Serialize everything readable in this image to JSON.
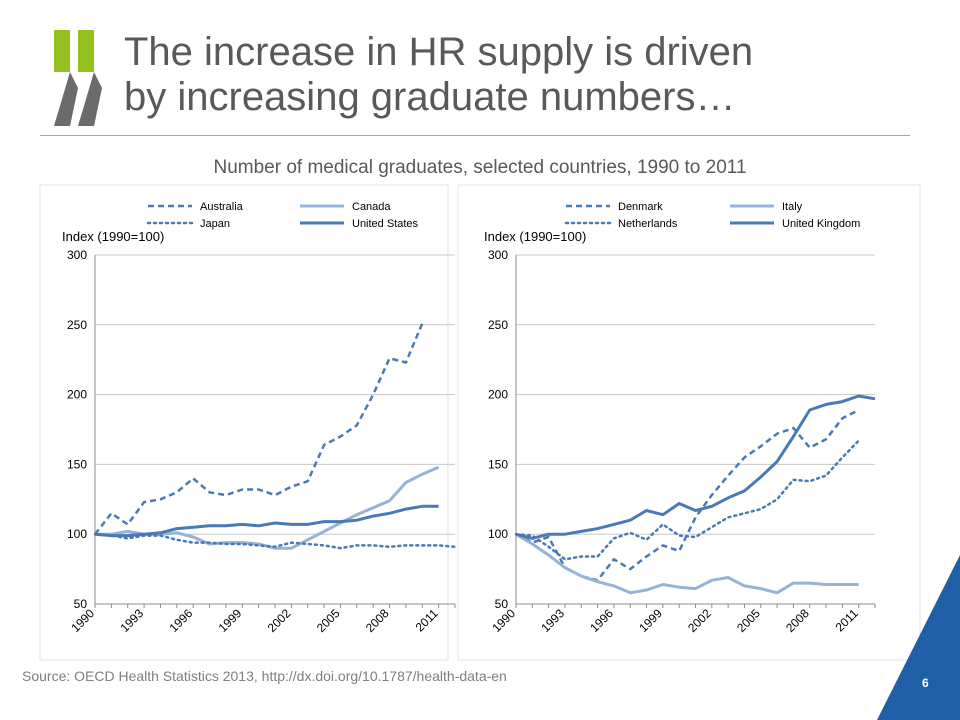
{
  "header": {
    "title_line1": "The increase in HR supply is driven",
    "title_line2": "by increasing graduate numbers…",
    "subtitle": "Number of medical graduates, selected countries, 1990 to 2011"
  },
  "footer": {
    "source": "Source: OECD Health Statistics 2013, http://dx.doi.org/10.1787/health-data-en",
    "page_number": "6"
  },
  "colors": {
    "dark_series": "#4a7ab5",
    "light_series": "#95b3d7",
    "logo_green": "#94c11f",
    "logo_grey": "#6b6b6b",
    "corner_blue": "#1f5fa6"
  },
  "chart_data": [
    {
      "type": "line",
      "ylabel": "Index (1990=100)",
      "ylim": [
        50,
        300
      ],
      "yticks": [
        50,
        100,
        150,
        200,
        250,
        300
      ],
      "xticks": [
        "1990",
        "1993",
        "1996",
        "1999",
        "2002",
        "2005",
        "2008",
        "2011"
      ],
      "x": [
        1990,
        1991,
        1992,
        1993,
        1994,
        1995,
        1996,
        1997,
        1998,
        1999,
        2000,
        2001,
        2002,
        2003,
        2004,
        2005,
        2006,
        2007,
        2008,
        2009,
        2010,
        2011,
        2012
      ],
      "grid": true,
      "legend_position": "top",
      "series": [
        {
          "name": "Australia",
          "style": "dashed",
          "color": "dark",
          "values": [
            100,
            115,
            107,
            123,
            125,
            130,
            140,
            130,
            128,
            132,
            132,
            128,
            134,
            138,
            164,
            170,
            178,
            200,
            226,
            223,
            251,
            null,
            null
          ]
        },
        {
          "name": "Canada",
          "style": "solid",
          "color": "light",
          "values": [
            100,
            100,
            102,
            100,
            100,
            101,
            98,
            93,
            94,
            94,
            93,
            90,
            90,
            96,
            102,
            108,
            114,
            119,
            124,
            137,
            143,
            148,
            null
          ]
        },
        {
          "name": "Japan",
          "style": "dotted",
          "color": "dark",
          "values": [
            100,
            99,
            97,
            99,
            99,
            96,
            94,
            94,
            93,
            93,
            92,
            91,
            94,
            93,
            92,
            90,
            92,
            92,
            91,
            92,
            92,
            92,
            91
          ]
        },
        {
          "name": "United States",
          "style": "solid",
          "color": "dark",
          "values": [
            100,
            99,
            99,
            100,
            101,
            104,
            105,
            106,
            106,
            107,
            106,
            108,
            107,
            107,
            109,
            109,
            110,
            113,
            115,
            118,
            120,
            120,
            null
          ]
        }
      ]
    },
    {
      "type": "line",
      "ylabel": "Index (1990=100)",
      "ylim": [
        50,
        300
      ],
      "yticks": [
        50,
        100,
        150,
        200,
        250,
        300
      ],
      "xticks": [
        "1990",
        "1993",
        "1996",
        "1999",
        "2002",
        "2005",
        "2008",
        "2011"
      ],
      "x": [
        1990,
        1991,
        1992,
        1993,
        1994,
        1995,
        1996,
        1997,
        1998,
        1999,
        2000,
        2001,
        2002,
        2003,
        2004,
        2005,
        2006,
        2007,
        2008,
        2009,
        2010,
        2011,
        2012
      ],
      "grid": true,
      "legend_position": "top",
      "series": [
        {
          "name": "Denmark",
          "style": "dashed",
          "color": "dark",
          "values": [
            100,
            94,
            98,
            76,
            70,
            67,
            82,
            75,
            84,
            92,
            88,
            112,
            128,
            142,
            155,
            163,
            172,
            176,
            162,
            168,
            183,
            189,
            null
          ]
        },
        {
          "name": "Italy",
          "style": "solid",
          "color": "light",
          "values": [
            100,
            93,
            85,
            76,
            70,
            66,
            63,
            58,
            60,
            64,
            62,
            61,
            67,
            69,
            63,
            61,
            58,
            65,
            65,
            64,
            64,
            64,
            null
          ]
        },
        {
          "name": "Netherlands",
          "style": "dotted",
          "color": "dark",
          "values": [
            100,
            99,
            91,
            82,
            84,
            84,
            97,
            101,
            96,
            107,
            99,
            98,
            105,
            112,
            115,
            118,
            125,
            139,
            138,
            142,
            155,
            167,
            null
          ]
        },
        {
          "name": "United Kingdom",
          "style": "solid",
          "color": "dark",
          "values": [
            100,
            97,
            100,
            100,
            102,
            104,
            107,
            110,
            117,
            114,
            122,
            117,
            120,
            126,
            131,
            141,
            152,
            170,
            189,
            193,
            195,
            199,
            197
          ]
        }
      ]
    }
  ]
}
